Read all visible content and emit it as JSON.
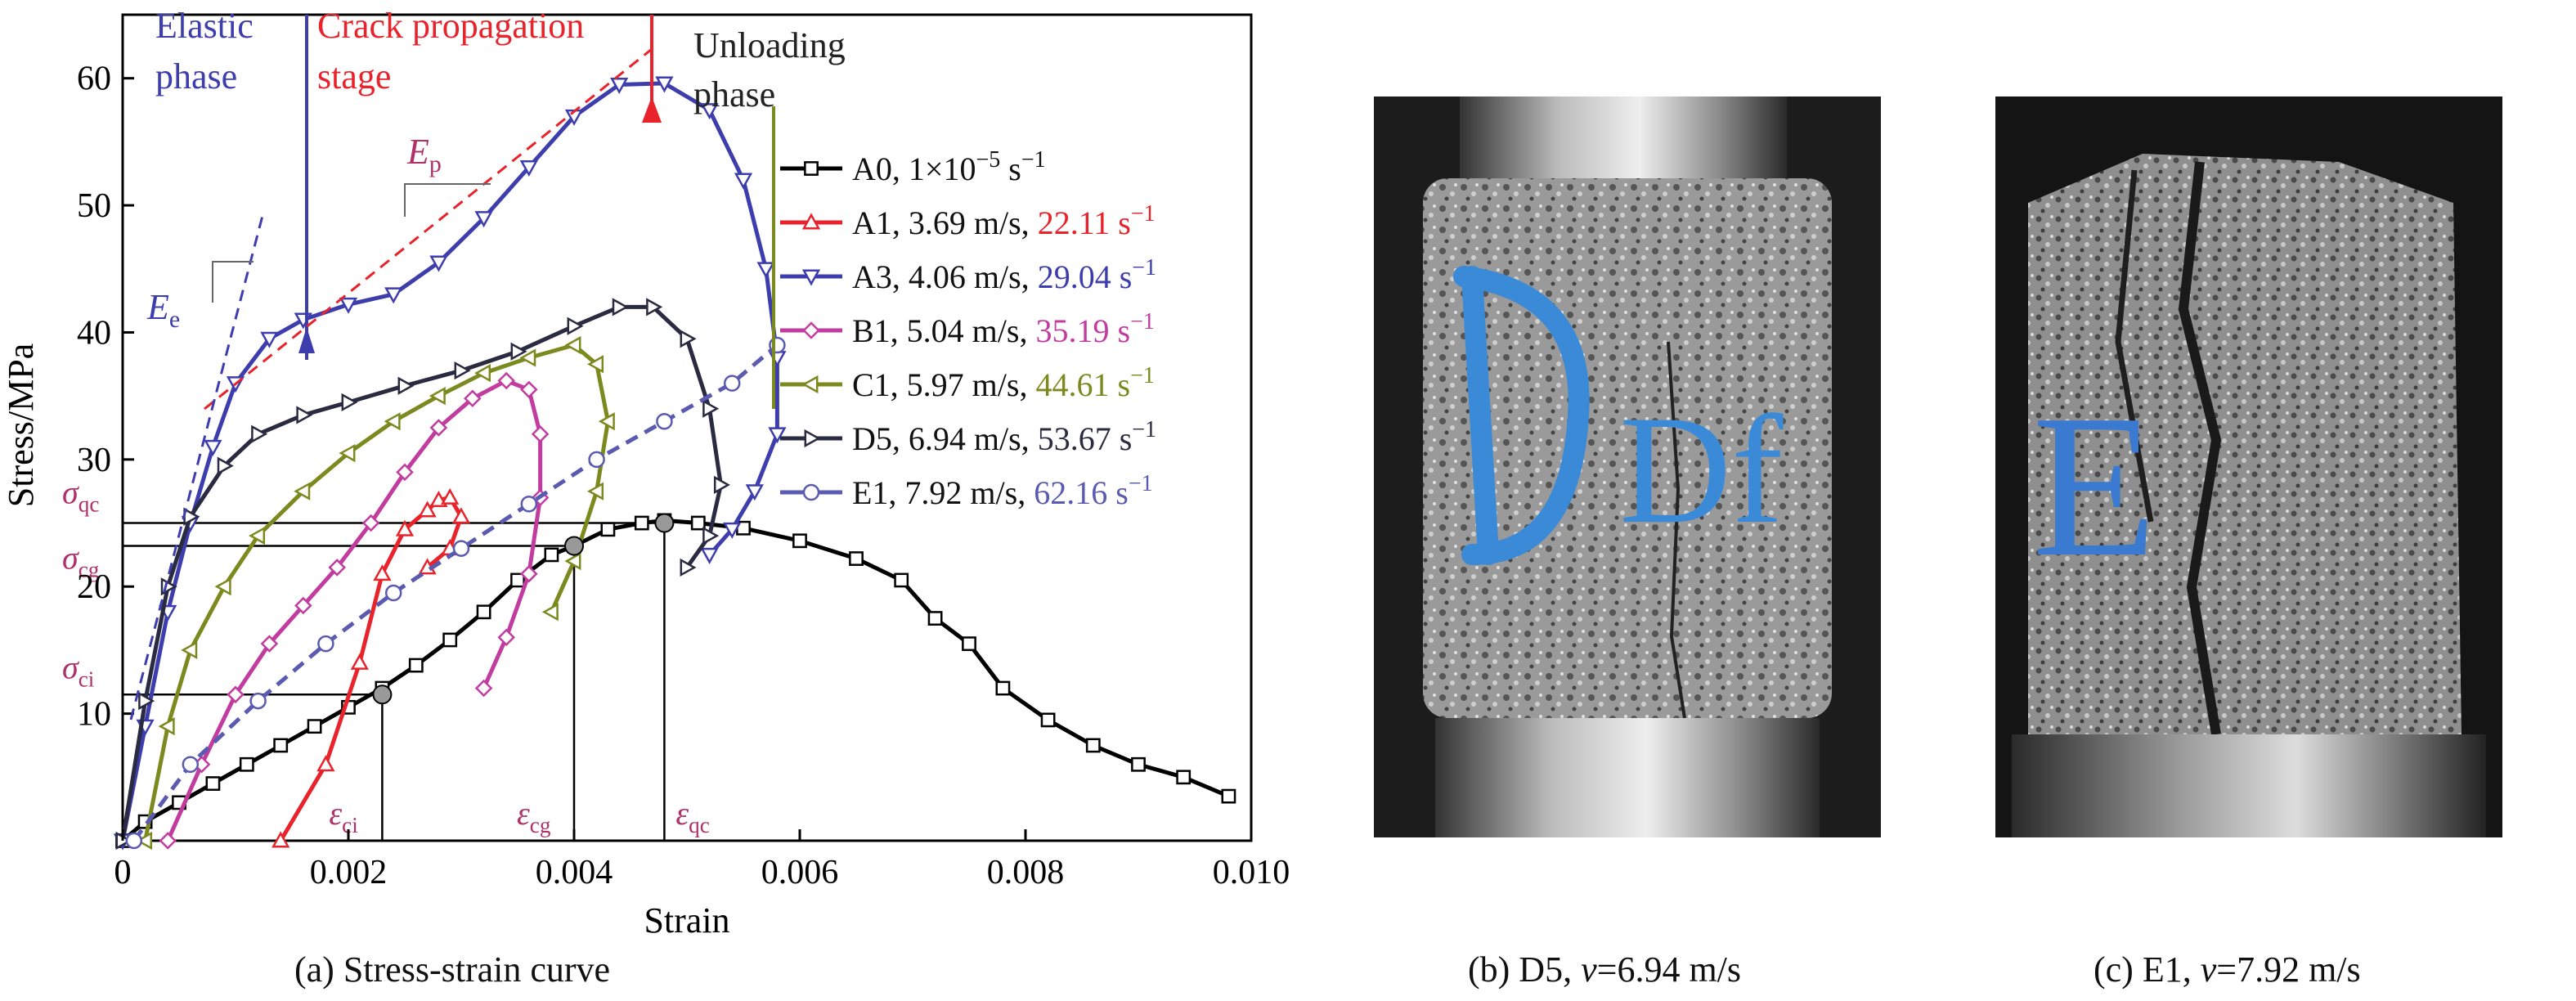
{
  "chart_data": {
    "type": "line",
    "xlabel": "Strain",
    "ylabel": "Stress/MPa",
    "xlim": [
      0,
      0.01
    ],
    "ylim": [
      0,
      65
    ],
    "x_ticks": [
      "0",
      "0.002",
      "0.004",
      "0.006",
      "0.008",
      "0.010"
    ],
    "y_ticks": [
      "10",
      "20",
      "30",
      "40",
      "50",
      "60"
    ],
    "legend_position": "right",
    "grid": false,
    "series": [
      {
        "name": "A0, 1×10⁻⁵ s⁻¹",
        "label_main": "A0, 1×10",
        "label_exp": "−5",
        "label_unit": " s",
        "label_unit_exp": "−1",
        "label_rate": "",
        "color": "#000000",
        "rate_color": "#000000",
        "marker": "square",
        "x": [
          0,
          0.0002,
          0.0005,
          0.0008,
          0.0011,
          0.0014,
          0.0017,
          0.002,
          0.0023,
          0.0026,
          0.0029,
          0.0032,
          0.0035,
          0.0038,
          0.004,
          0.0043,
          0.0046,
          0.0048,
          0.0051,
          0.0055,
          0.006,
          0.0065,
          0.0069,
          0.0072,
          0.0075,
          0.0078,
          0.0082,
          0.0086,
          0.009,
          0.0094,
          0.0098
        ],
        "y": [
          0,
          1.5,
          3,
          4.5,
          6,
          7.5,
          9,
          10.5,
          12,
          13.8,
          15.8,
          18,
          20.5,
          22.5,
          23.2,
          24.5,
          25.0,
          25.2,
          25.0,
          24.6,
          23.6,
          22.2,
          20.5,
          17.5,
          15.5,
          12.0,
          9.5,
          7.5,
          6.0,
          5.0,
          3.5
        ]
      },
      {
        "name": "A1, 3.69 m/s, 22.11 s⁻¹",
        "label_main": "A1, 3.69 m/s, ",
        "label_exp": "",
        "label_unit": "",
        "label_unit_exp": "",
        "label_rate": "22.11 s",
        "color": "#e8232b",
        "rate_color": "#e8232b",
        "marker": "triangle-up",
        "x": [
          0.0014,
          0.0018,
          0.0021,
          0.0023,
          0.0025,
          0.0027,
          0.0028,
          0.0029,
          0.003,
          0.0029,
          0.0027
        ],
        "y": [
          0,
          6,
          14,
          21,
          24.5,
          26.0,
          26.8,
          27.0,
          25.5,
          23.0,
          21.5
        ]
      },
      {
        "name": "A3, 4.06 m/s, 29.04 s⁻¹",
        "label_main": "A3, 4.06 m/s, ",
        "label_exp": "",
        "label_unit": "",
        "label_unit_exp": "",
        "label_rate": "29.04 s",
        "color": "#3d3dad",
        "rate_color": "#3d3dad",
        "marker": "triangle-down",
        "x": [
          0,
          0.0002,
          0.0004,
          0.0006,
          0.0008,
          0.001,
          0.0013,
          0.0016,
          0.002,
          0.0024,
          0.0028,
          0.0032,
          0.0036,
          0.004,
          0.0044,
          0.0048,
          0.0052,
          0.0055,
          0.0057,
          0.0058,
          0.0058,
          0.0056,
          0.0054,
          0.0052
        ],
        "y": [
          0,
          9,
          18,
          25,
          31,
          36,
          39.5,
          41.0,
          42.2,
          43.0,
          45.5,
          49.0,
          53.0,
          57.0,
          59.5,
          59.6,
          57.5,
          52.0,
          45.0,
          38.0,
          32.0,
          27.5,
          24.5,
          22.5
        ]
      },
      {
        "name": "B1, 5.04 m/s, 35.19 s⁻¹",
        "label_main": "B1, 5.04 m/s, ",
        "label_exp": "",
        "label_unit": "",
        "label_unit_exp": "",
        "label_rate": "35.19 s",
        "color": "#c23ca0",
        "rate_color": "#c23ca0",
        "marker": "diamond",
        "x": [
          0.0004,
          0.0007,
          0.001,
          0.0013,
          0.0016,
          0.0019,
          0.0022,
          0.0025,
          0.0028,
          0.0031,
          0.0034,
          0.0036,
          0.0037,
          0.0037,
          0.0036,
          0.0034,
          0.0032
        ],
        "y": [
          0,
          6,
          11.5,
          15.5,
          18.5,
          21.5,
          25.0,
          29.0,
          32.5,
          34.8,
          36.2,
          35.5,
          32.0,
          27.0,
          21.0,
          16.0,
          12.0
        ]
      },
      {
        "name": "C1, 5.97 m/s, 44.61 s⁻¹",
        "label_main": "C1, 5.97 m/s, ",
        "label_exp": "",
        "label_unit": "",
        "label_unit_exp": "",
        "label_rate": "44.61 s",
        "color": "#7b8a1e",
        "rate_color": "#7b8a1e",
        "marker": "triangle-left",
        "x": [
          0.0002,
          0.0004,
          0.0006,
          0.0009,
          0.0012,
          0.0016,
          0.002,
          0.0024,
          0.0028,
          0.0032,
          0.0036,
          0.004,
          0.0042,
          0.0043,
          0.0042,
          0.004,
          0.0038
        ],
        "y": [
          0,
          9,
          15,
          20,
          24,
          27.5,
          30.5,
          33.0,
          35.0,
          36.8,
          38.0,
          39.0,
          37.5,
          33.0,
          27.5,
          22.0,
          18.0
        ]
      },
      {
        "name": "D5, 6.94 m/s, 53.67 s⁻¹",
        "label_main": "D5, 6.94 m/s, ",
        "label_exp": "",
        "label_unit": "",
        "label_unit_exp": "",
        "label_rate": "53.67 s",
        "color": "#2a2a40",
        "rate_color": "#2a2a40",
        "marker": "triangle-right",
        "x": [
          0,
          0.0002,
          0.0004,
          0.0006,
          0.0009,
          0.0012,
          0.0016,
          0.002,
          0.0025,
          0.003,
          0.0035,
          0.004,
          0.0044,
          0.0047,
          0.005,
          0.0052,
          0.0053,
          0.0052,
          0.005
        ],
        "y": [
          0,
          11,
          20,
          25.5,
          29.5,
          32.0,
          33.5,
          34.5,
          35.8,
          37.0,
          38.5,
          40.5,
          42.0,
          42.0,
          39.5,
          34.0,
          28.0,
          24.0,
          21.5
        ]
      },
      {
        "name": "E1, 7.92 m/s, 62.16 s⁻¹",
        "label_main": "E1, 7.92 m/s, ",
        "label_exp": "",
        "label_unit": "",
        "label_unit_exp": "",
        "label_rate": "62.16 s",
        "color": "#5a5ab0",
        "rate_color": "#5a5ab0",
        "marker": "circle",
        "dashed": true,
        "x": [
          0.0001,
          0.0006,
          0.0012,
          0.0018,
          0.0024,
          0.003,
          0.0036,
          0.0042,
          0.0048,
          0.0054,
          0.0058
        ],
        "y": [
          0,
          6,
          11,
          15.5,
          19.5,
          23.0,
          26.5,
          30.0,
          33.0,
          36.0,
          39.0
        ]
      }
    ],
    "reference_lines": {
      "sigma_qc": {
        "y": 25.0,
        "x": 0.0048,
        "label_base": "σ",
        "label_sub": "qc"
      },
      "sigma_cg": {
        "y": 23.2,
        "x": 0.004,
        "label_base": "σ",
        "label_sub": "cg"
      },
      "sigma_ci": {
        "y": 11.5,
        "x": 0.0023,
        "label_base": "σ",
        "label_sub": "ci"
      },
      "eps_ci": {
        "label_base": "ε",
        "label_sub": "ci"
      },
      "eps_cg": {
        "label_base": "ε",
        "label_sub": "cg"
      },
      "eps_qc": {
        "label_base": "ε",
        "label_sub": "qc"
      }
    },
    "annotations": {
      "elastic_1": "Elastic",
      "elastic_2": "phase",
      "crack_1": "Crack propagation",
      "crack_2": "stage",
      "unloading_1": "Unloading",
      "unloading_2": "phase",
      "ep_base": "E",
      "ep_sub": "p",
      "ee_base": "E",
      "ee_sub": "e"
    }
  },
  "captions": {
    "a": "(a) Stress-strain curve",
    "b_prefix": "(b) D5, ",
    "b_var": "v",
    "b_suffix": "=6.94 m/s",
    "c_prefix": "(c) E1, ",
    "c_var": "v",
    "c_suffix": "=7.92 m/s"
  },
  "photos": {
    "b_marking": "Df",
    "c_marking": "E"
  }
}
